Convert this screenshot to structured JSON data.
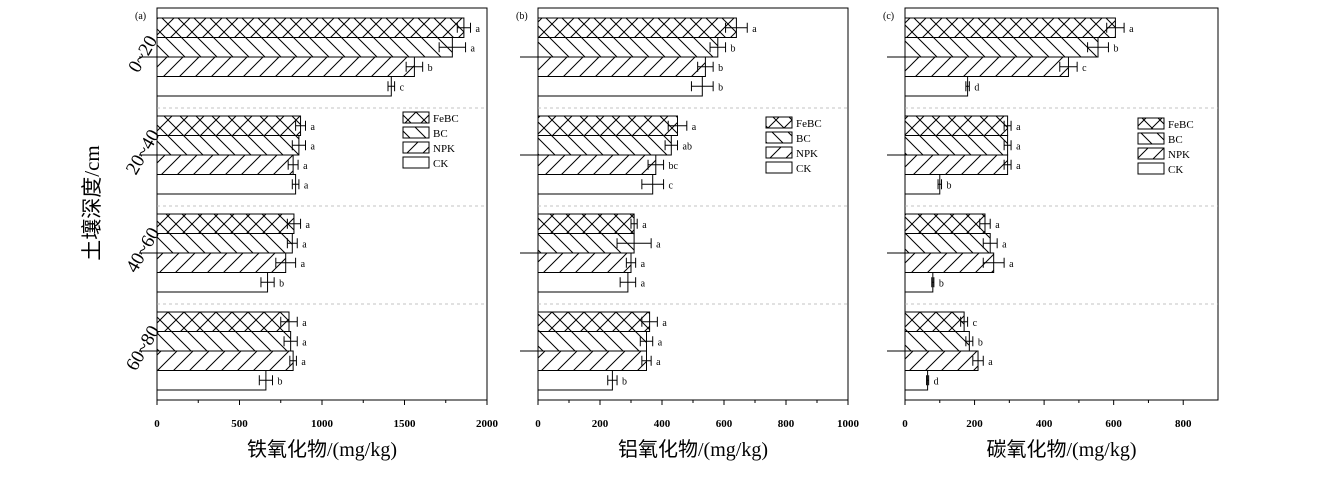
{
  "y_axis_label": "土壤深度/cm",
  "depth_categories": [
    "0~20",
    "20~40",
    "40~60",
    "60~80"
  ],
  "legend": [
    "FeBC",
    "BC",
    "NPK",
    "CK"
  ],
  "colors": {
    "bar_fill": "#ffffff",
    "stroke": "#000000",
    "grid": "#b0b0b0"
  },
  "chart_data": [
    {
      "type": "bar",
      "orientation": "horizontal",
      "panel_label": "(a)",
      "xlabel": "铁氧化物/(mg/kg)",
      "xlim": [
        0,
        2000
      ],
      "xticks": [
        "0",
        "500",
        "1000",
        "1500",
        "2000"
      ],
      "categories": [
        "0~20",
        "20~40",
        "40~60",
        "60~80"
      ],
      "series": [
        {
          "name": "FeBC",
          "values": [
            1860,
            870,
            830,
            800
          ],
          "errors": [
            40,
            30,
            40,
            50
          ],
          "letters": [
            "a",
            "a",
            "a",
            "a"
          ]
        },
        {
          "name": "BC",
          "values": [
            1790,
            860,
            820,
            810
          ],
          "errors": [
            80,
            40,
            30,
            40
          ],
          "letters": [
            "a",
            "a",
            "a",
            "a"
          ]
        },
        {
          "name": "NPK",
          "values": [
            1560,
            825,
            780,
            825
          ],
          "errors": [
            50,
            30,
            60,
            20
          ],
          "letters": [
            "b",
            "a",
            "a",
            "a"
          ]
        },
        {
          "name": "CK",
          "values": [
            1420,
            840,
            670,
            660
          ],
          "errors": [
            20,
            20,
            40,
            40
          ],
          "letters": [
            "c",
            "a",
            "b",
            "b"
          ]
        }
      ],
      "grid": true,
      "legend_position": "right"
    },
    {
      "type": "bar",
      "orientation": "horizontal",
      "panel_label": "(b)",
      "xlabel": "铝氧化物/(mg/kg)",
      "xlim": [
        0,
        1000
      ],
      "xticks": [
        "0",
        "200",
        "400",
        "600",
        "800",
        "1000"
      ],
      "categories": [
        "0~20",
        "20~40",
        "40~60",
        "60~80"
      ],
      "series": [
        {
          "name": "FeBC",
          "values": [
            640,
            450,
            310,
            360
          ],
          "errors": [
            35,
            30,
            10,
            25
          ],
          "letters": [
            "a",
            "a",
            "a",
            "a"
          ]
        },
        {
          "name": "BC",
          "values": [
            580,
            430,
            310,
            350
          ],
          "errors": [
            25,
            20,
            55,
            20
          ],
          "letters": [
            "b",
            "ab",
            "a",
            "a"
          ]
        },
        {
          "name": "NPK",
          "values": [
            540,
            380,
            300,
            350
          ],
          "errors": [
            25,
            25,
            15,
            15
          ],
          "letters": [
            "b",
            "bc",
            "a",
            "a"
          ]
        },
        {
          "name": "CK",
          "values": [
            530,
            370,
            290,
            240
          ],
          "errors": [
            35,
            35,
            25,
            15
          ],
          "letters": [
            "b",
            "c",
            "a",
            "b"
          ]
        }
      ],
      "grid": true,
      "legend_position": "right"
    },
    {
      "type": "bar",
      "orientation": "horizontal",
      "panel_label": "(c)",
      "xlabel": "碳氧化物/(mg/kg)",
      "xlim": [
        0,
        900
      ],
      "xticks": [
        "0",
        "200",
        "400",
        "600",
        "800"
      ],
      "categories": [
        "0~20",
        "20~40",
        "40~60",
        "60~80"
      ],
      "series": [
        {
          "name": "FeBC",
          "values": [
            605,
            295,
            230,
            170
          ],
          "errors": [
            25,
            10,
            15,
            10
          ],
          "letters": [
            "a",
            "a",
            "a",
            "c"
          ]
        },
        {
          "name": "BC",
          "values": [
            555,
            295,
            245,
            185
          ],
          "errors": [
            30,
            10,
            20,
            10
          ],
          "letters": [
            "b",
            "a",
            "a",
            "b"
          ]
        },
        {
          "name": "NPK",
          "values": [
            470,
            295,
            255,
            210
          ],
          "errors": [
            25,
            10,
            30,
            15
          ],
          "letters": [
            "c",
            "a",
            "a",
            "a"
          ]
        },
        {
          "name": "CK",
          "values": [
            180,
            100,
            80,
            65
          ],
          "errors": [
            5,
            5,
            3,
            3
          ],
          "letters": [
            "d",
            "b",
            "b",
            "d"
          ]
        }
      ],
      "grid": true,
      "legend_position": "right"
    }
  ]
}
